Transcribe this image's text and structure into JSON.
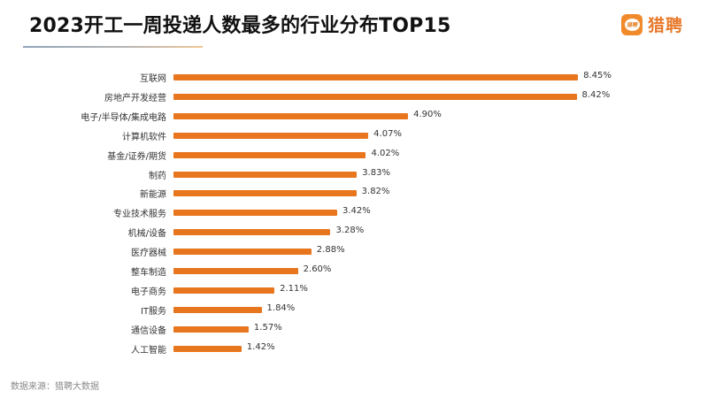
{
  "header": {
    "title": "2023开工一周投递人数最多的行业分布TOP15",
    "logo_badge_text": "猎聘",
    "logo_text": "猎聘",
    "brand_color": "#f08a2a"
  },
  "footer": {
    "source": "数据来源：猎聘大数据"
  },
  "chart_data": {
    "type": "bar",
    "orientation": "horizontal",
    "title": "2023开工一周投递人数最多的行业分布TOP15",
    "xlabel": "",
    "ylabel": "",
    "bar_color": "#e8761e",
    "grid": false,
    "legend": null,
    "categories": [
      "互联网",
      "房地产开发经营",
      "电子/半导体/集成电路",
      "计算机软件",
      "基金/证券/期货",
      "制药",
      "新能源",
      "专业技术服务",
      "机械/设备",
      "医疗器械",
      "整车制造",
      "电子商务",
      "IT服务",
      "通信设备",
      "人工智能"
    ],
    "values": [
      8.45,
      8.42,
      4.9,
      4.07,
      4.02,
      3.83,
      3.82,
      3.42,
      3.28,
      2.88,
      2.6,
      2.11,
      1.84,
      1.57,
      1.42
    ],
    "value_labels": [
      "8.45%",
      "8.42%",
      "4.90%",
      "4.07%",
      "4.02%",
      "3.83%",
      "3.82%",
      "3.42%",
      "3.28%",
      "2.88%",
      "2.60%",
      "2.11%",
      "1.84%",
      "1.57%",
      "1.42%"
    ],
    "unit": "%",
    "source": "数据来源：猎聘大数据"
  }
}
